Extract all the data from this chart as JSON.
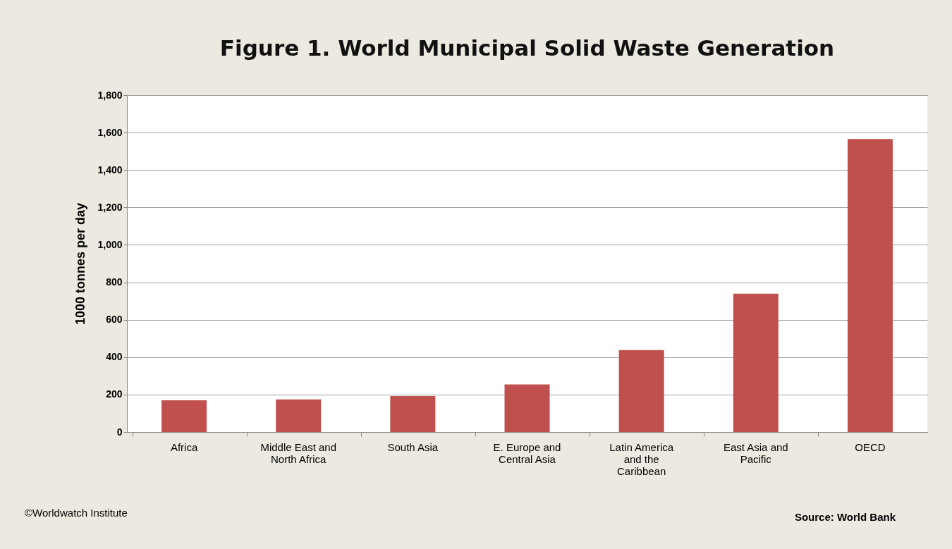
{
  "chart_data": {
    "type": "bar",
    "title": "Figure 1. World Municipal Solid Waste Generation",
    "categories": [
      "Africa",
      "Middle East and North Africa",
      "South Asia",
      "E. Europe and Central Asia",
      "Latin America and the Caribbean",
      "East Asia and Pacific",
      "OECD"
    ],
    "values": [
      169,
      174,
      192,
      254,
      438,
      739,
      1566
    ],
    "color": "#c0504d",
    "ylabel": "1000 tonnes per day",
    "ylim": [
      0,
      1800
    ],
    "yticks": [
      0,
      200,
      400,
      600,
      800,
      {
        "value": 1000,
        "label": "1,000"
      },
      {
        "value": 1200,
        "label": "1,200"
      },
      {
        "value": 1400,
        "label": "1,400"
      },
      {
        "value": 1600,
        "label": "1,600"
      },
      {
        "value": 1800,
        "label": "1,800"
      }
    ],
    "grid": "y",
    "annotations": [
      "©Worldwatch Institute",
      "Source: World Bank"
    ]
  }
}
